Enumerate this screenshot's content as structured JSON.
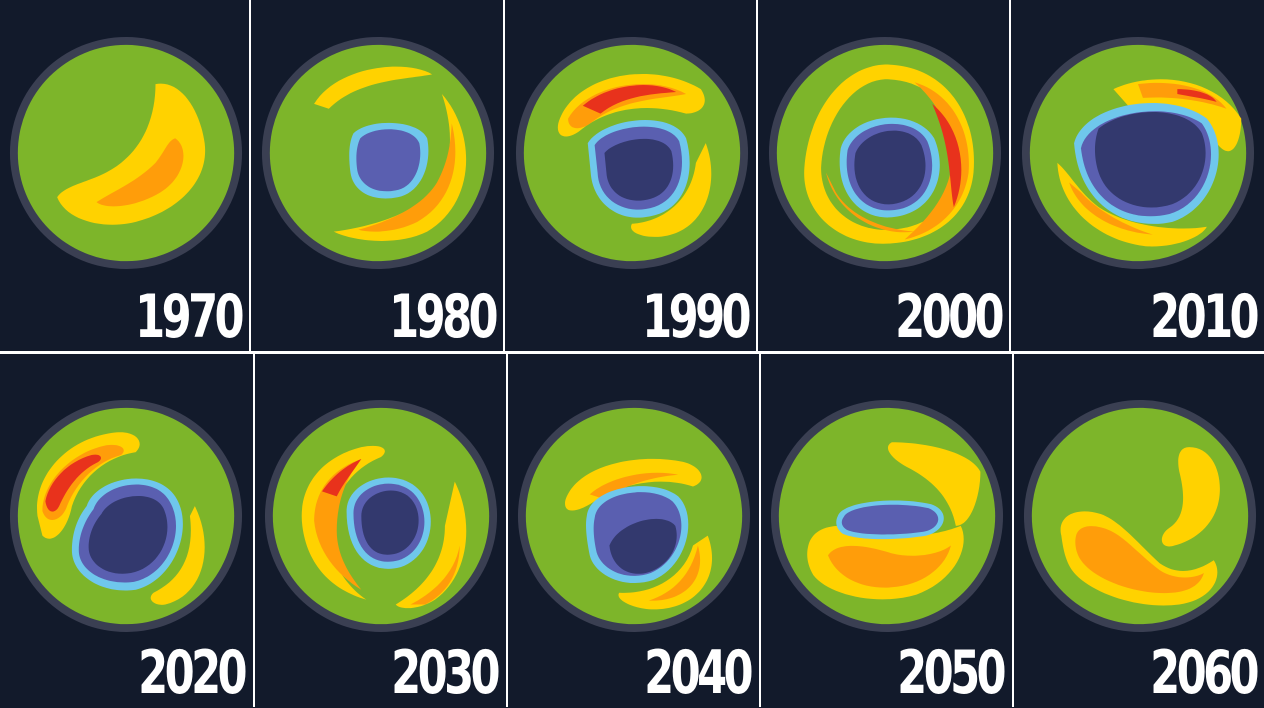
{
  "panels": [
    {
      "year": "1970"
    },
    {
      "year": "1980"
    },
    {
      "year": "1990"
    },
    {
      "year": "2000"
    },
    {
      "year": "2010"
    },
    {
      "year": "2020"
    },
    {
      "year": "2030"
    },
    {
      "year": "2040"
    },
    {
      "year": "2050"
    },
    {
      "year": "2060"
    }
  ],
  "colors": {
    "background": "#121a2b",
    "rim": "#3a3f52",
    "green": "#7db52a",
    "yellow": "#ffd200",
    "orange": "#ff9d0a",
    "red": "#e8321c",
    "cyan": "#6fc7ec",
    "blue": "#5a5fb0",
    "navy": "#33396e"
  }
}
